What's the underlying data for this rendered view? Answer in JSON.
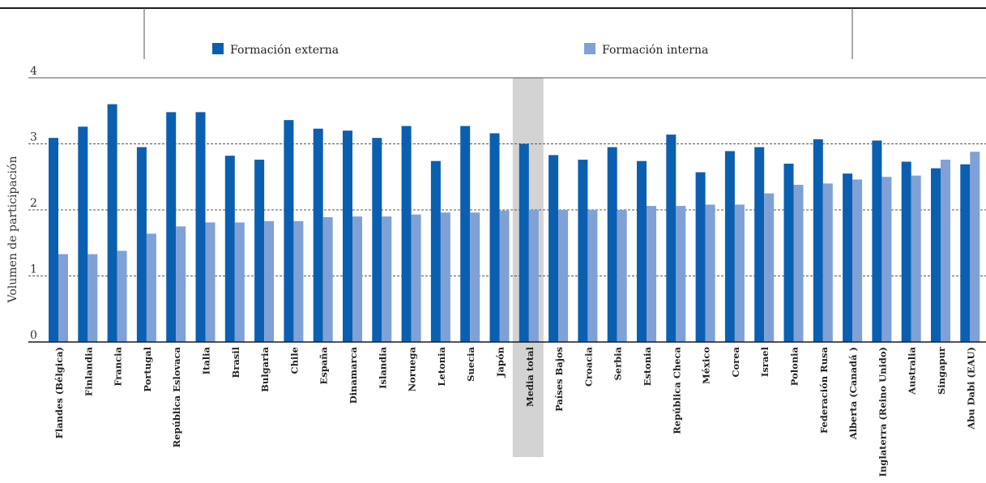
{
  "chart_data": {
    "type": "bar",
    "title": "",
    "xlabel": "",
    "ylabel": "Volumen de participación",
    "ylim": [
      0,
      4
    ],
    "yticks": [
      0,
      1,
      2,
      3,
      4
    ],
    "grid": "dashed at 1, 2, 3",
    "legend_position": "top",
    "highlight_category": "Media total",
    "categories": [
      "Flandes (Bélgica)",
      "Finlandia",
      "Francia",
      "Portugal",
      "República Eslovaca",
      "Italia",
      "Brasil",
      "Bulgaria",
      "Chile",
      "España",
      "Dinamarca",
      "Islandia",
      "Noruega",
      "Letonia",
      "Suecia",
      "Japón",
      "Media total",
      "Países Bajos",
      "Croacia",
      "Serbia",
      "Estonia",
      "República Checa",
      "México",
      "Corea",
      "Israel",
      "Polonia",
      "Federación Rusa",
      "Alberta (Canadá )",
      "Inglaterra (Reino Unido)",
      "Australia",
      "Singapur",
      "Abu Dabi (EAU)"
    ],
    "series": [
      {
        "name": "Formación externa",
        "color": "#0b5fb0",
        "values": [
          3.09,
          3.26,
          3.6,
          2.95,
          3.48,
          3.48,
          2.82,
          2.76,
          3.36,
          3.23,
          3.2,
          3.09,
          3.27,
          2.74,
          3.27,
          3.16,
          3.0,
          2.83,
          2.76,
          2.95,
          2.74,
          3.14,
          2.57,
          2.89,
          2.95,
          2.7,
          3.07,
          2.55,
          3.05,
          2.73,
          2.63,
          2.69
        ]
      },
      {
        "name": "Formación interna",
        "color": "#7fa1d6",
        "values": [
          1.33,
          1.33,
          1.38,
          1.64,
          1.75,
          1.81,
          1.81,
          1.83,
          1.83,
          1.89,
          1.9,
          1.9,
          1.93,
          1.96,
          1.96,
          1.99,
          2.0,
          2.0,
          2.0,
          2.0,
          2.06,
          2.06,
          2.08,
          2.08,
          2.25,
          2.38,
          2.4,
          2.46,
          2.5,
          2.52,
          2.76,
          2.88
        ]
      }
    ]
  }
}
